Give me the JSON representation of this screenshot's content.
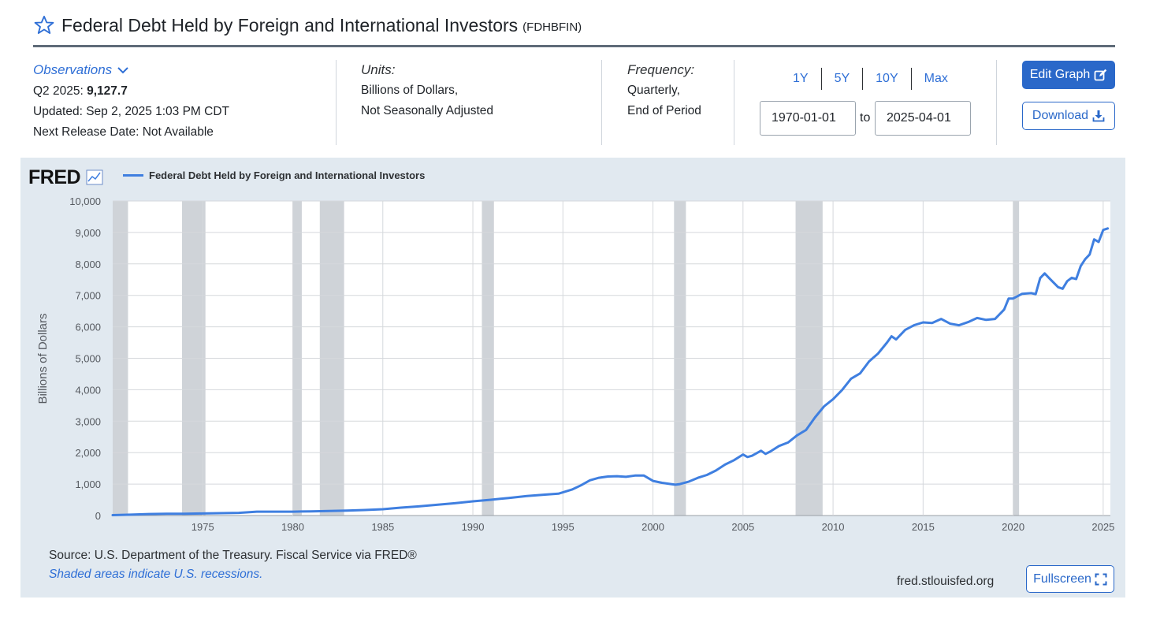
{
  "header": {
    "title": "Federal Debt Held by Foreign and International Investors",
    "series_id": "(FDHBFIN)"
  },
  "observations": {
    "label": "Observations",
    "latest_period": "Q2 2025:",
    "latest_value": "9,127.7",
    "updated": "Updated: Sep 2, 2025 1:03 PM CDT",
    "next_release": "Next Release Date: Not Available"
  },
  "units": {
    "label": "Units:",
    "line1": "Billions of Dollars,",
    "line2": "Not Seasonally Adjusted"
  },
  "frequency": {
    "label": "Frequency:",
    "line1": "Quarterly,",
    "line2": "End of Period"
  },
  "range": {
    "links": [
      "1Y",
      "5Y",
      "10Y",
      "Max"
    ],
    "start": "1970-01-01",
    "to_label": "to",
    "end": "2025-04-01"
  },
  "buttons": {
    "edit_graph": "Edit Graph",
    "download": "Download",
    "fullscreen": "Fullscreen"
  },
  "footer": {
    "source": "Source: U.S. Department of the Treasury. Fiscal Service via FRED®",
    "recession_note": "Shaded areas indicate U.S. recessions.",
    "site": "fred.stlouisfed.org"
  },
  "chart_data": {
    "type": "line",
    "logo": "FRED",
    "series": [
      {
        "name": "Federal Debt Held by Foreign and International Investors",
        "color": "#3f7fe0",
        "x": [
          1970.0,
          1971.0,
          1972.0,
          1973.0,
          1974.0,
          1975.0,
          1976.0,
          1977.0,
          1978.0,
          1979.0,
          1980.0,
          1981.0,
          1982.0,
          1983.0,
          1984.0,
          1985.0,
          1986.0,
          1987.0,
          1988.0,
          1989.0,
          1990.0,
          1991.0,
          1992.0,
          1993.0,
          1994.0,
          1994.75,
          1995.5,
          1996.0,
          1996.5,
          1997.0,
          1997.5,
          1998.0,
          1998.5,
          1999.0,
          1999.5,
          2000.0,
          2000.5,
          2001.0,
          2001.25,
          2001.5,
          2002.0,
          2002.5,
          2003.0,
          2003.5,
          2004.0,
          2004.5,
          2005.0,
          2005.25,
          2005.5,
          2006.0,
          2006.25,
          2006.5,
          2007.0,
          2007.5,
          2008.0,
          2008.5,
          2009.0,
          2009.5,
          2010.0,
          2010.5,
          2011.0,
          2011.5,
          2012.0,
          2012.5,
          2013.0,
          2013.25,
          2013.5,
          2014.0,
          2014.5,
          2015.0,
          2015.5,
          2016.0,
          2016.5,
          2017.0,
          2017.5,
          2018.0,
          2018.5,
          2019.0,
          2019.5,
          2019.75,
          2020.0,
          2020.5,
          2021.0,
          2021.25,
          2021.5,
          2021.75,
          2022.0,
          2022.5,
          2022.75,
          2023.0,
          2023.25,
          2023.5,
          2023.75,
          2024.0,
          2024.25,
          2024.5,
          2024.75,
          2025.0,
          2025.25
        ],
        "values": [
          12,
          28,
          48,
          58,
          58,
          66,
          74,
          86,
          122,
          122,
          124,
          132,
          142,
          158,
          175,
          200,
          250,
          290,
          340,
          390,
          450,
          500,
          560,
          620,
          665,
          695,
          825,
          960,
          1120,
          1200,
          1240,
          1250,
          1230,
          1270,
          1270,
          1100,
          1040,
          1000,
          980,
          1000,
          1080,
          1200,
          1290,
          1430,
          1620,
          1760,
          1940,
          1860,
          1900,
          2060,
          1960,
          2030,
          2210,
          2320,
          2550,
          2720,
          3120,
          3470,
          3700,
          3990,
          4350,
          4520,
          4900,
          5150,
          5500,
          5700,
          5600,
          5900,
          6050,
          6140,
          6120,
          6250,
          6100,
          6050,
          6150,
          6280,
          6220,
          6250,
          6550,
          6900,
          6900,
          7050,
          7070,
          7040,
          7550,
          7700,
          7550,
          7260,
          7210,
          7450,
          7560,
          7520,
          7930,
          8150,
          8300,
          8780,
          8700,
          9080,
          9128
        ]
      }
    ],
    "recessions": [
      [
        1970.0,
        1970.85
      ],
      [
        1973.85,
        1975.15
      ],
      [
        1980.0,
        1980.5
      ],
      [
        1981.5,
        1982.85
      ],
      [
        1990.5,
        1991.17
      ],
      [
        2001.17,
        2001.83
      ],
      [
        2007.92,
        2009.42
      ],
      [
        2020.0,
        2020.33
      ]
    ],
    "xlim": [
      1970.0,
      2025.4
    ],
    "ylim": [
      0,
      10000
    ],
    "yticks": [
      0,
      1000,
      2000,
      3000,
      4000,
      5000,
      6000,
      7000,
      8000,
      9000,
      10000
    ],
    "ytick_labels": [
      "0",
      "1,000",
      "2,000",
      "3,000",
      "4,000",
      "5,000",
      "6,000",
      "7,000",
      "8,000",
      "9,000",
      "10,000"
    ],
    "xticks": [
      1975,
      1980,
      1985,
      1990,
      1995,
      2000,
      2005,
      2010,
      2015,
      2020,
      2025
    ],
    "xtick_labels": [
      "1975",
      "1980",
      "1985",
      "1990",
      "1995",
      "2000",
      "2005",
      "2010",
      "2015",
      "2020",
      "2025"
    ],
    "ylabel": "Billions of Dollars",
    "grid": true,
    "recession_color": "#cfd3d8"
  }
}
